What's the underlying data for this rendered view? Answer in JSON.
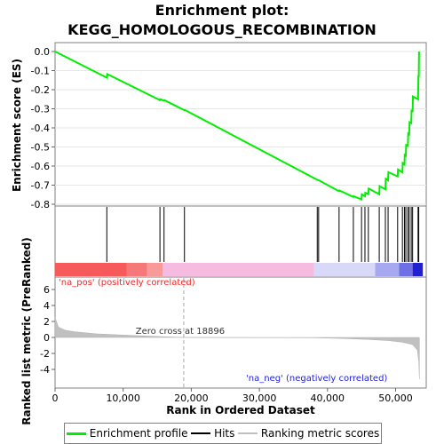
{
  "chart_data": {
    "type": "line",
    "title_line1": "Enrichment plot:",
    "title_line2": "KEGG_HOMOLOGOUS_RECOMBINATION",
    "es_panel": {
      "ylabel": "Enrichment score (ES)",
      "ylim": [
        -0.8,
        0.0
      ],
      "yticks": [
        0.0,
        -0.1,
        -0.2,
        -0.3,
        -0.4,
        -0.5,
        -0.6,
        -0.7,
        -0.8
      ],
      "ytick_labels": [
        "0.0",
        "-0.1",
        "-0.2",
        "-0.3",
        "-0.4",
        "-0.5",
        "-0.6",
        "-0.7",
        "-0.8"
      ],
      "series": [
        {
          "name": "Enrichment profile",
          "color": "#00ee00",
          "x": [
            0,
            7600,
            7650,
            15400,
            15450,
            16000,
            16050,
            19000,
            19050,
            38500,
            38550,
            38700,
            38750,
            41700,
            41750,
            43800,
            43850,
            45000,
            45050,
            45500,
            45550,
            46000,
            46050,
            47600,
            47650,
            48500,
            48550,
            48900,
            48950,
            50300,
            50350,
            51000,
            51050,
            51300,
            51350,
            51500,
            51550,
            51800,
            51850,
            52000,
            52050,
            52300,
            52350,
            52500,
            52550,
            53300,
            53350,
            53400,
            53450
          ],
          "y": [
            0.0,
            -0.137,
            -0.118,
            -0.255,
            -0.25,
            -0.257,
            -0.255,
            -0.308,
            -0.306,
            -0.672,
            -0.673,
            -0.674,
            -0.675,
            -0.732,
            -0.728,
            -0.762,
            -0.758,
            -0.775,
            -0.748,
            -0.758,
            -0.74,
            -0.747,
            -0.718,
            -0.748,
            -0.705,
            -0.722,
            -0.667,
            -0.675,
            -0.632,
            -0.654,
            -0.618,
            -0.633,
            -0.584,
            -0.592,
            -0.542,
            -0.546,
            -0.49,
            -0.494,
            -0.43,
            -0.434,
            -0.37,
            -0.375,
            -0.31,
            -0.312,
            -0.236,
            -0.25,
            -0.13,
            -0.13,
            0.0
          ]
        }
      ]
    },
    "hits_panel": {
      "legend_name": "Hits",
      "hit_positions": [
        7600,
        15400,
        16000,
        19000,
        38500,
        38700,
        41700,
        43800,
        45000,
        45500,
        46000,
        47600,
        48500,
        48900,
        50300,
        51000,
        51300,
        51500,
        51800,
        52000,
        52300,
        52500,
        53300,
        53400
      ],
      "heatmap_segments": [
        {
          "from": 0,
          "to": 10500,
          "color": "#f65a5a"
        },
        {
          "from": 10500,
          "to": 13500,
          "color": "#f77878"
        },
        {
          "from": 13500,
          "to": 15800,
          "color": "#f99a9a"
        },
        {
          "from": 15800,
          "to": 38000,
          "color": "#f5bbe0"
        },
        {
          "from": 38000,
          "to": 47000,
          "color": "#d8d8f8"
        },
        {
          "from": 47000,
          "to": 50500,
          "color": "#a8a8f0"
        },
        {
          "from": 50500,
          "to": 52500,
          "color": "#6f6fe6"
        },
        {
          "from": 52500,
          "to": 54000,
          "color": "#2020d0"
        }
      ]
    },
    "metric_panel": {
      "ylabel": "Ranked list metric (PreRanked)",
      "xlabel": "Rank in Ordered Dataset",
      "legend_name": "Ranking metric scores",
      "ylim": [
        -6,
        7
      ],
      "yticks": [
        6,
        4,
        2,
        0,
        -2,
        -4
      ],
      "ytick_labels": [
        "6",
        "4",
        "2",
        "0",
        "-2",
        "-4"
      ],
      "x": [
        0,
        500,
        1500,
        3000,
        6000,
        10000,
        14000,
        18896,
        38000,
        42000,
        46000,
        49000,
        51000,
        52500,
        53200,
        53400,
        53500
      ],
      "y": [
        2.5,
        1.3,
        0.9,
        0.7,
        0.45,
        0.3,
        0.15,
        0.0,
        -0.05,
        -0.12,
        -0.25,
        -0.4,
        -0.6,
        -0.9,
        -1.6,
        -3.0,
        -5.2
      ],
      "zero_cross_label": "Zero cross at 18896",
      "zero_cross_x": 18896,
      "pos_label": "'na_pos' (positively correlated)",
      "neg_label": "'na_neg' (negatively correlated)"
    },
    "xaxis": {
      "xlim": [
        0,
        54500
      ],
      "xticks": [
        0,
        10000,
        20000,
        30000,
        40000,
        50000
      ],
      "xtick_labels": [
        "0",
        "10,000",
        "20,000",
        "30,000",
        "40,000",
        "50,000"
      ]
    },
    "legend": {
      "items": [
        {
          "label": "Enrichment profile",
          "color": "#00ee00"
        },
        {
          "label": "Hits",
          "color": "#000000"
        },
        {
          "label": "Ranking metric scores",
          "color": "#c0c0c0"
        }
      ]
    }
  }
}
